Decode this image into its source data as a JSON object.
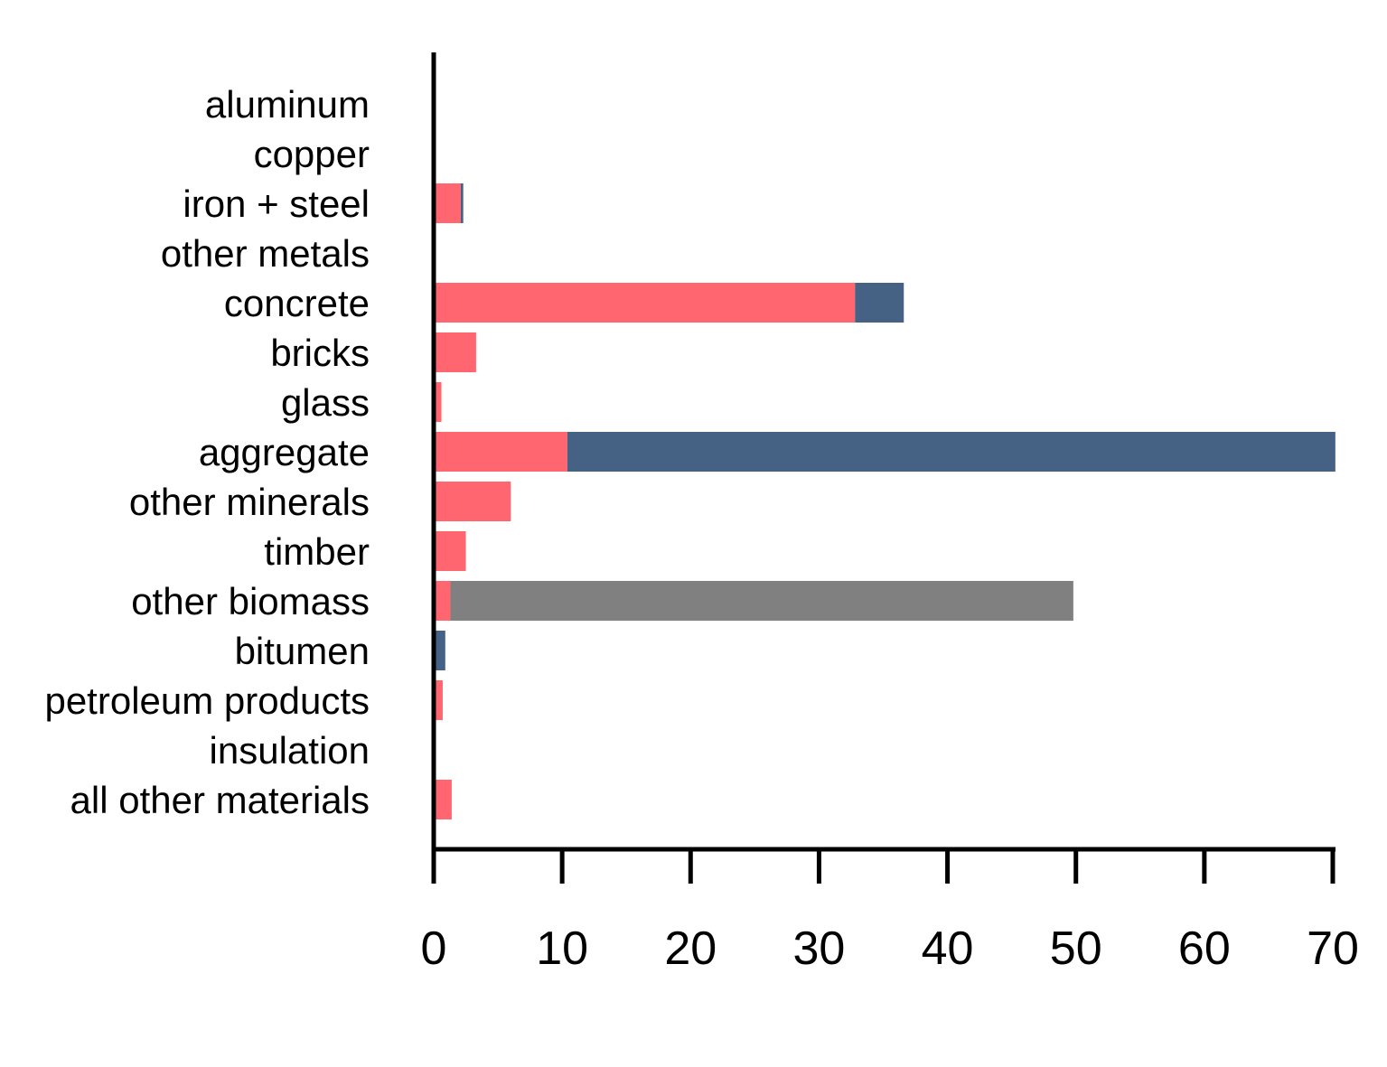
{
  "chart_data": {
    "type": "bar",
    "orientation": "horizontal",
    "stacked": true,
    "title": "",
    "xlabel": "",
    "ylabel": "",
    "xlim": [
      0,
      70
    ],
    "xticks": [
      0,
      10,
      20,
      30,
      40,
      50,
      60,
      70
    ],
    "grid": false,
    "legend": "none",
    "categories": [
      "aluminum",
      "copper",
      "iron + steel",
      "other metals",
      "concrete",
      "bricks",
      "glass",
      "aggregate",
      "other minerals",
      "timber",
      "other biomass",
      "bitumen",
      "petroleum products",
      "insulation",
      "all other materials"
    ],
    "series": [
      {
        "color": "#ff6670",
        "values": [
          0,
          0,
          2.1,
          0,
          32.8,
          3.3,
          0.6,
          10.4,
          6.0,
          2.5,
          1.3,
          0,
          0.7,
          0,
          1.4
        ]
      },
      {
        "color": "#456285",
        "values": [
          0,
          0,
          0.2,
          0,
          3.8,
          0,
          0,
          59.8,
          0,
          0,
          0,
          0.9,
          0,
          0,
          0
        ]
      },
      {
        "color": "#808080",
        "values": [
          0,
          0,
          0,
          0,
          0,
          0,
          0,
          0,
          0,
          0,
          48.5,
          0,
          0,
          0,
          0
        ]
      }
    ]
  }
}
